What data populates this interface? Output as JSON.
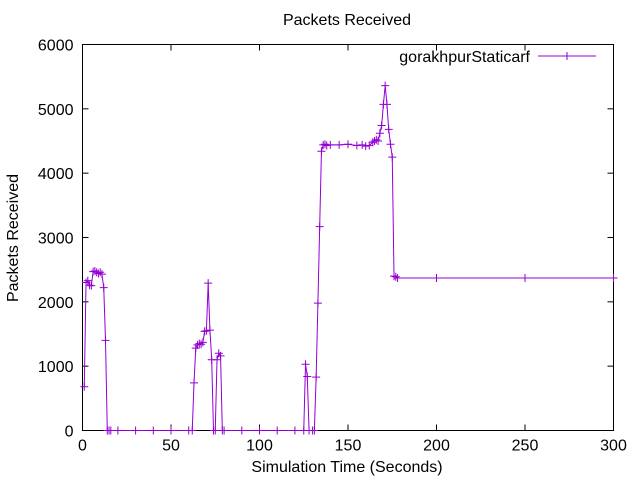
{
  "chart_data": {
    "type": "line",
    "title": "Packets Received",
    "xlabel": "Simulation Time (Seconds)",
    "ylabel": "Packets Received",
    "xlim": [
      0,
      300
    ],
    "ylim": [
      0,
      6000
    ],
    "x_ticks": [
      0,
      50,
      100,
      150,
      200,
      250,
      300
    ],
    "y_ticks": [
      0,
      1000,
      2000,
      3000,
      4000,
      5000,
      6000
    ],
    "grid": false,
    "legend": "top-right",
    "series": [
      {
        "name": "gorakhpurStaticarf",
        "color": "#9400d3",
        "marker": "plus",
        "x": [
          1,
          2,
          3,
          4,
          5,
          6,
          7,
          8,
          9,
          10,
          11,
          12,
          13,
          14,
          15,
          16,
          20,
          30,
          40,
          50,
          60,
          62,
          63,
          64,
          65,
          66,
          67,
          68,
          69,
          70,
          71,
          72,
          73,
          74,
          75,
          76,
          77,
          78,
          79,
          80,
          90,
          100,
          110,
          120,
          125,
          126,
          127,
          128,
          130,
          131,
          132,
          133,
          134,
          135,
          136,
          137,
          138,
          140,
          145,
          150,
          155,
          158,
          160,
          162,
          164,
          165,
          166,
          167,
          168,
          169,
          170,
          171,
          172,
          173,
          174,
          175,
          176,
          177,
          178,
          200,
          250,
          300
        ],
        "y": [
          680,
          2300,
          2330,
          2260,
          2250,
          2470,
          2480,
          2460,
          2440,
          2460,
          2430,
          2220,
          1400,
          0,
          0,
          0,
          0,
          0,
          0,
          0,
          0,
          0,
          740,
          1280,
          1330,
          1350,
          1340,
          1370,
          1540,
          1550,
          2290,
          1560,
          1100,
          0,
          0,
          1100,
          1200,
          1160,
          0,
          0,
          0,
          0,
          0,
          0,
          0,
          1030,
          840,
          0,
          0,
          0,
          830,
          1980,
          3170,
          4340,
          4440,
          4450,
          4430,
          4440,
          4440,
          4450,
          4430,
          4440,
          4420,
          4430,
          4480,
          4500,
          4520,
          4500,
          4620,
          4740,
          5070,
          5360,
          5070,
          4680,
          4450,
          4250,
          2400,
          2390,
          2370,
          2370,
          2370,
          2370
        ]
      }
    ]
  }
}
